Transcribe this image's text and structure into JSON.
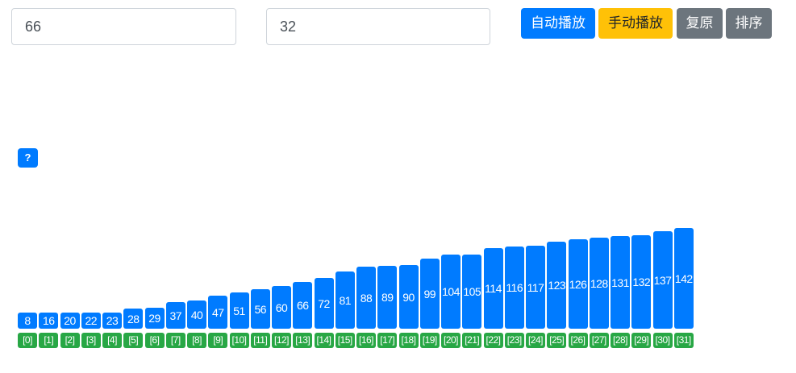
{
  "controls": {
    "input_a_value": "66",
    "input_b_value": "32",
    "auto_play_label": "自动播放",
    "manual_play_label": "手动播放",
    "reset_label": "复原",
    "sort_label": "排序",
    "help_label": "?"
  },
  "colors": {
    "bar": "#007bff",
    "index_badge": "#28a745",
    "auto_button": "#007bff",
    "manual_button": "#ffc107",
    "secondary_button": "#6c757d"
  },
  "array": {
    "values": [
      8,
      16,
      20,
      22,
      23,
      28,
      29,
      37,
      40,
      47,
      51,
      56,
      60,
      66,
      72,
      81,
      88,
      89,
      90,
      99,
      104,
      105,
      114,
      116,
      117,
      123,
      126,
      128,
      131,
      132,
      137,
      142
    ],
    "indices": [
      "[0]",
      "[1]",
      "[2]",
      "[3]",
      "[4]",
      "[5]",
      "[6]",
      "[7]",
      "[8]",
      "[9]",
      "[10]",
      "[11]",
      "[12]",
      "[13]",
      "[14]",
      "[15]",
      "[16]",
      "[17]",
      "[18]",
      "[19]",
      "[20]",
      "[21]",
      "[22]",
      "[23]",
      "[24]",
      "[25]",
      "[26]",
      "[27]",
      "[28]",
      "[29]",
      "[30]",
      "[31]"
    ]
  }
}
